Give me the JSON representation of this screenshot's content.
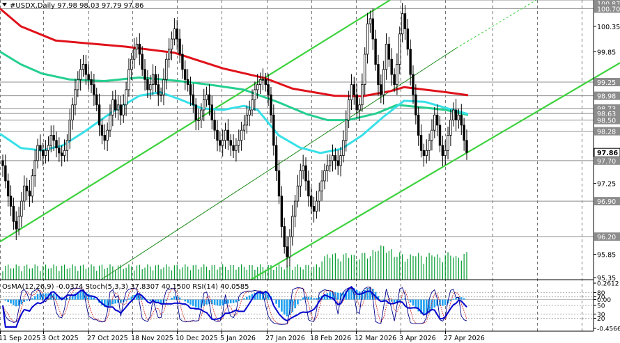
{
  "header": {
    "symbol_line": "#USDX,Daily  97.98 98.03 97.79 97.86",
    "indicators_line": "OsMA(12,26,9) -0.0374  Stoch(5,3,3) 37.8307 40.1500  RSI(14) 40.0585"
  },
  "colors": {
    "candle": "#000000",
    "volume": "#009b2e",
    "ma_red": "#e0121b",
    "ma_green": "#25cf90",
    "ma_cyan": "#38e0e8",
    "channel": "#3cd23c",
    "trend_line": "#1e8c1e",
    "level_line": "#8c8c8c",
    "osma": "#1ea0f0",
    "stoch_main": "#00008b",
    "stoch_signal": "#c81e1e",
    "rsi": "#0000cd"
  },
  "chart_data": {
    "type": "candlestick",
    "symbol": "#USDX",
    "timeframe": "Daily",
    "last_ohlc": {
      "open": 97.98,
      "high": 98.03,
      "low": 97.79,
      "close": 97.86
    },
    "ylim": [
      95.35,
      100.87
    ],
    "x_tick_labels": [
      "11 Sep 2025",
      "3 Oct 2025",
      "27 Oct 2025",
      "18 Nov 2025",
      "10 Dec 2025",
      "5 Jan 2026",
      "27 Jan 2026",
      "18 Feb 2026",
      "12 Mar 2026",
      "3 Apr 2026",
      "27 Apr 2026"
    ],
    "price_axis_labels": [
      "100.87",
      "100.70",
      "100.35",
      "99.85",
      "99.25",
      "98.98",
      "98.73",
      "98.63",
      "98.50",
      "98.28",
      "97.86",
      "97.70",
      "97.25",
      "96.90",
      "96.20",
      "95.85",
      "95.35"
    ],
    "horizontal_levels": [
      100.87,
      100.7,
      99.25,
      98.98,
      98.73,
      98.63,
      98.5,
      98.28,
      97.7,
      96.9,
      96.2
    ],
    "current_price": 97.86,
    "close_series": [
      97.6,
      97.3,
      97.0,
      96.8,
      96.5,
      96.35,
      96.6,
      96.9,
      97.2,
      97.1,
      97.0,
      97.4,
      97.7,
      98.0,
      97.9,
      97.8,
      97.9,
      98.0,
      98.2,
      98.1,
      97.95,
      97.85,
      97.8,
      97.9,
      98.1,
      98.5,
      98.8,
      99.1,
      99.3,
      99.5,
      99.6,
      99.4,
      99.3,
      99.2,
      99.0,
      98.8,
      98.4,
      98.2,
      98.1,
      98.3,
      98.6,
      98.9,
      98.7,
      98.8,
      98.6,
      98.8,
      99.1,
      99.5,
      99.7,
      99.9,
      100.0,
      99.8,
      99.5,
      99.3,
      99.1,
      99.2,
      99.4,
      99.2,
      99.0,
      99.0,
      99.3,
      99.7,
      99.9,
      100.1,
      100.3,
      100.1,
      99.8,
      99.5,
      99.3,
      99.2,
      99.0,
      98.8,
      98.5,
      98.5,
      98.7,
      98.9,
      99.0,
      98.8,
      98.5,
      98.3,
      98.1,
      98.0,
      98.1,
      98.3,
      98.1,
      98.0,
      97.9,
      98.0,
      98.1,
      98.3,
      98.4,
      98.6,
      98.7,
      98.9,
      99.1,
      99.2,
      99.3,
      99.3,
      99.2,
      99.0,
      98.6,
      98.0,
      97.5,
      97.0,
      96.4,
      96.0,
      95.8,
      96.2,
      96.6,
      96.9,
      97.2,
      97.5,
      97.6,
      97.3,
      97.0,
      96.8,
      96.7,
      96.9,
      97.1,
      97.3,
      97.5,
      97.6,
      97.7,
      97.8,
      97.7,
      97.6,
      97.8,
      98.1,
      98.5,
      98.9,
      99.2,
      99.0,
      98.7,
      98.8,
      99.2,
      99.8,
      100.4,
      100.5,
      100.1,
      99.6,
      99.2,
      99.0,
      99.5,
      100.0,
      99.7,
      99.4,
      99.2,
      99.6,
      100.2,
      100.6,
      100.3,
      99.9,
      99.4,
      99.0,
      98.6,
      98.2,
      97.9,
      97.8,
      97.9,
      98.1,
      98.3,
      98.6,
      98.4,
      98.0,
      97.8,
      97.9,
      98.2,
      98.5,
      98.7,
      98.5,
      98.6,
      98.4,
      98.1,
      97.86
    ],
    "moving_averages": [
      {
        "color": "#e0121b",
        "points": [
          [
            0,
            100.7
          ],
          [
            30,
            100.35
          ],
          [
            80,
            100.07
          ],
          [
            180,
            99.95
          ],
          [
            250,
            99.83
          ],
          [
            320,
            99.52
          ],
          [
            380,
            99.33
          ],
          [
            420,
            99.12
          ],
          [
            480,
            98.98
          ],
          [
            520,
            98.97
          ],
          [
            560,
            99.07
          ],
          [
            580,
            99.15
          ],
          [
            610,
            99.1
          ],
          [
            640,
            99.05
          ],
          [
            672,
            98.99
          ]
        ]
      },
      {
        "color": "#25cf90",
        "points": [
          [
            0,
            99.85
          ],
          [
            30,
            99.6
          ],
          [
            60,
            99.42
          ],
          [
            100,
            99.3
          ],
          [
            150,
            99.27
          ],
          [
            200,
            99.34
          ],
          [
            250,
            99.28
          ],
          [
            300,
            99.2
          ],
          [
            350,
            99.1
          ],
          [
            400,
            98.85
          ],
          [
            440,
            98.62
          ],
          [
            470,
            98.5
          ],
          [
            500,
            98.5
          ],
          [
            540,
            98.63
          ],
          [
            570,
            98.8
          ],
          [
            600,
            98.76
          ],
          [
            640,
            98.7
          ],
          [
            672,
            98.6
          ]
        ]
      },
      {
        "color": "#38e0e8",
        "points": [
          [
            0,
            98.23
          ],
          [
            30,
            97.95
          ],
          [
            60,
            97.9
          ],
          [
            90,
            98.0
          ],
          [
            120,
            98.26
          ],
          [
            160,
            98.65
          ],
          [
            200,
            98.98
          ],
          [
            230,
            99.05
          ],
          [
            260,
            98.9
          ],
          [
            290,
            98.73
          ],
          [
            320,
            98.7
          ],
          [
            350,
            98.78
          ],
          [
            370,
            98.7
          ],
          [
            400,
            98.2
          ],
          [
            430,
            97.96
          ],
          [
            460,
            97.85
          ],
          [
            490,
            97.93
          ],
          [
            520,
            98.2
          ],
          [
            550,
            98.56
          ],
          [
            580,
            98.88
          ],
          [
            610,
            98.86
          ],
          [
            640,
            98.74
          ],
          [
            672,
            98.62
          ]
        ]
      }
    ],
    "channel_lines": [
      {
        "points": [
          [
            0,
            96.1
          ],
          [
            560,
            100.87
          ]
        ]
      },
      {
        "points": [
          [
            360,
            95.35
          ],
          [
            890,
            99.63
          ]
        ]
      }
    ],
    "trend_lines": [
      {
        "style": "solid",
        "points": [
          [
            145,
            95.35
          ],
          [
            655,
            99.92
          ]
        ]
      },
      {
        "style": "dashed",
        "points": [
          [
            655,
            99.92
          ],
          [
            770,
            100.87
          ]
        ]
      }
    ],
    "sub_panel": {
      "ylim": [
        -0.4566,
        0.2612
      ],
      "axis_labels": [
        "0.2612",
        "80",
        "70",
        "0.00",
        "50",
        "30",
        "20",
        "-0.4566"
      ],
      "oscillator_levels": [
        80,
        70,
        50,
        30,
        20
      ]
    }
  }
}
